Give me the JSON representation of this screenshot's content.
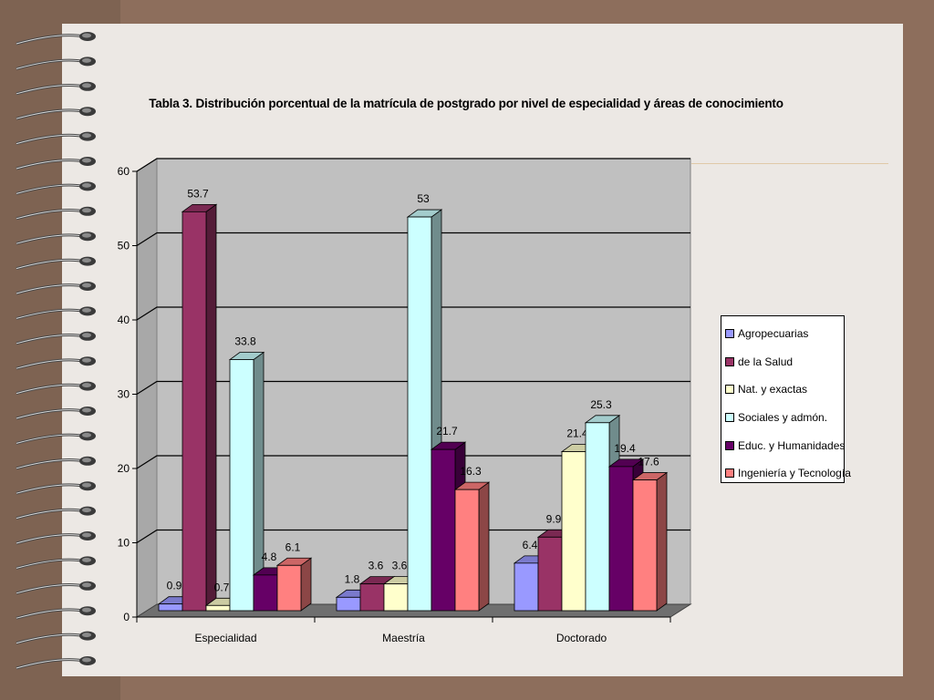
{
  "chart_data": {
    "type": "bar",
    "title": "Tabla 3. Distribución porcentual de la matrícula de postgrado por nivel de especialidad y áreas de conocimiento",
    "categories": [
      "Especialidad",
      "Maestría",
      "Doctorado"
    ],
    "series": [
      {
        "name": "Agropecuarias",
        "values": [
          0.9,
          1.8,
          6.4
        ],
        "color": "#9999ff"
      },
      {
        "name": "de la Salud",
        "values": [
          53.7,
          3.6,
          9.9
        ],
        "color": "#993366"
      },
      {
        "name": "Nat. y exactas",
        "values": [
          0.7,
          3.6,
          21.4
        ],
        "color": "#ffffcc"
      },
      {
        "name": "Sociales y admón.",
        "values": [
          33.8,
          53,
          25.3
        ],
        "color": "#ccffff"
      },
      {
        "name": "Educ. y Humanidades",
        "values": [
          4.8,
          21.7,
          19.4
        ],
        "color": "#660066"
      },
      {
        "name": "Ingeniería y Tecnología",
        "values": [
          6.1,
          16.3,
          17.6
        ],
        "color": "#ff8080"
      }
    ],
    "data_labels": [
      [
        "0.9",
        "1.8",
        "6.4"
      ],
      [
        "53.7",
        "3.6",
        "9.9"
      ],
      [
        "0.7",
        "3.6",
        "21.4"
      ],
      [
        "33.8",
        "53",
        "25.3"
      ],
      [
        "4.8",
        "21.7",
        "19.4"
      ],
      [
        "6.1",
        "16.3",
        "17.6"
      ]
    ],
    "ylim": [
      0,
      60
    ],
    "yticks": [
      "0",
      "10",
      "20",
      "30",
      "40",
      "50",
      "60"
    ],
    "grid": true,
    "legend": "right",
    "xlabel": "",
    "ylabel": ""
  }
}
